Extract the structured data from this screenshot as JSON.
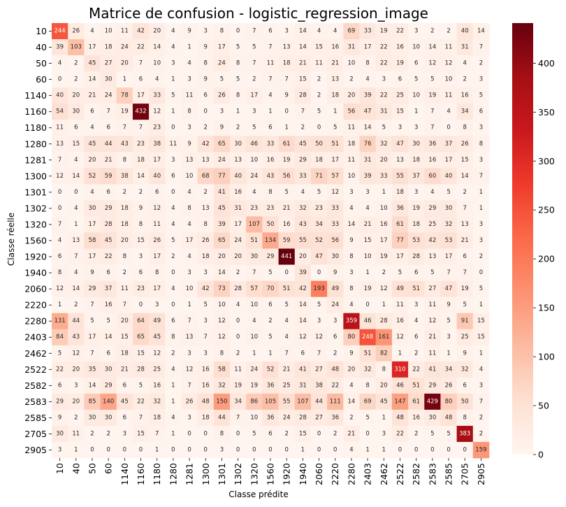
{
  "chart_data": {
    "type": "heatmap",
    "title": "Matrice de confusion - logistic_regression_image",
    "xlabel": "Classe prédite",
    "ylabel": "Classe réelle",
    "labels": [
      "10",
      "40",
      "50",
      "60",
      "1140",
      "1160",
      "1180",
      "1280",
      "1281",
      "1300",
      "1301",
      "1302",
      "1320",
      "1560",
      "1920",
      "1940",
      "2060",
      "2220",
      "2280",
      "2403",
      "2462",
      "2522",
      "2582",
      "2583",
      "2585",
      "2705",
      "2905"
    ],
    "matrix": [
      [
        244,
        26,
        4,
        10,
        11,
        42,
        20,
        4,
        9,
        3,
        8,
        0,
        7,
        6,
        3,
        14,
        4,
        4,
        69,
        33,
        19,
        22,
        3,
        2,
        2,
        40,
        14
      ],
      [
        39,
        103,
        17,
        18,
        24,
        22,
        14,
        4,
        1,
        9,
        17,
        5,
        5,
        7,
        13,
        14,
        15,
        16,
        31,
        17,
        22,
        16,
        10,
        14,
        11,
        31,
        7
      ],
      [
        4,
        2,
        45,
        27,
        20,
        7,
        10,
        3,
        4,
        8,
        24,
        8,
        7,
        11,
        18,
        21,
        11,
        21,
        10,
        8,
        22,
        19,
        6,
        12,
        12,
        4,
        2
      ],
      [
        0,
        2,
        14,
        30,
        1,
        6,
        4,
        1,
        3,
        9,
        5,
        5,
        2,
        7,
        7,
        15,
        2,
        13,
        2,
        4,
        3,
        6,
        5,
        5,
        10,
        2,
        3
      ],
      [
        40,
        20,
        21,
        24,
        78,
        17,
        33,
        5,
        11,
        6,
        26,
        8,
        17,
        4,
        9,
        28,
        2,
        18,
        20,
        39,
        22,
        25,
        10,
        19,
        11,
        16,
        5
      ],
      [
        54,
        30,
        6,
        7,
        19,
        432,
        12,
        1,
        8,
        0,
        3,
        1,
        3,
        1,
        0,
        7,
        5,
        1,
        56,
        47,
        31,
        15,
        1,
        7,
        4,
        34,
        6
      ],
      [
        11,
        6,
        4,
        6,
        7,
        7,
        23,
        0,
        3,
        2,
        9,
        2,
        5,
        6,
        1,
        2,
        0,
        5,
        11,
        14,
        5,
        3,
        3,
        7,
        0,
        8,
        3
      ],
      [
        13,
        15,
        45,
        44,
        43,
        23,
        38,
        11,
        9,
        42,
        65,
        30,
        46,
        33,
        61,
        45,
        50,
        51,
        18,
        76,
        32,
        47,
        30,
        36,
        37,
        26,
        8
      ],
      [
        7,
        4,
        20,
        21,
        8,
        18,
        17,
        3,
        13,
        13,
        24,
        13,
        10,
        16,
        19,
        29,
        18,
        17,
        11,
        31,
        20,
        13,
        18,
        16,
        17,
        15,
        3
      ],
      [
        12,
        14,
        52,
        59,
        38,
        14,
        40,
        6,
        10,
        68,
        77,
        40,
        24,
        43,
        56,
        33,
        71,
        57,
        10,
        39,
        33,
        55,
        37,
        60,
        40,
        14,
        7
      ],
      [
        0,
        0,
        4,
        6,
        2,
        2,
        6,
        0,
        4,
        2,
        41,
        16,
        4,
        8,
        5,
        4,
        5,
        12,
        3,
        3,
        1,
        18,
        3,
        4,
        5,
        2,
        1
      ],
      [
        0,
        4,
        30,
        29,
        18,
        9,
        12,
        4,
        8,
        13,
        45,
        31,
        23,
        23,
        21,
        32,
        23,
        33,
        4,
        4,
        10,
        36,
        19,
        29,
        30,
        7,
        1
      ],
      [
        7,
        1,
        17,
        28,
        18,
        8,
        11,
        4,
        4,
        8,
        39,
        17,
        107,
        50,
        16,
        43,
        34,
        33,
        14,
        21,
        16,
        61,
        18,
        25,
        32,
        13,
        3
      ],
      [
        4,
        13,
        58,
        45,
        20,
        15,
        26,
        5,
        17,
        26,
        65,
        24,
        51,
        134,
        59,
        55,
        52,
        56,
        9,
        15,
        17,
        77,
        53,
        42,
        53,
        21,
        3
      ],
      [
        6,
        7,
        17,
        22,
        8,
        3,
        17,
        2,
        4,
        18,
        20,
        20,
        30,
        29,
        441,
        20,
        47,
        30,
        8,
        10,
        19,
        17,
        28,
        13,
        17,
        6,
        2
      ],
      [
        8,
        4,
        9,
        6,
        2,
        6,
        8,
        0,
        3,
        3,
        14,
        2,
        7,
        5,
        0,
        39,
        0,
        9,
        3,
        1,
        2,
        5,
        6,
        5,
        7,
        7,
        0
      ],
      [
        12,
        14,
        29,
        37,
        11,
        23,
        17,
        4,
        10,
        42,
        73,
        28,
        57,
        70,
        51,
        42,
        193,
        49,
        8,
        19,
        12,
        49,
        51,
        27,
        47,
        19,
        5
      ],
      [
        1,
        2,
        7,
        16,
        7,
        0,
        3,
        0,
        1,
        5,
        10,
        4,
        10,
        6,
        5,
        14,
        5,
        24,
        4,
        0,
        1,
        11,
        3,
        11,
        9,
        5,
        1
      ],
      [
        131,
        44,
        5,
        5,
        20,
        64,
        49,
        6,
        7,
        3,
        12,
        0,
        4,
        2,
        4,
        14,
        3,
        3,
        359,
        46,
        28,
        16,
        4,
        12,
        5,
        91,
        15
      ],
      [
        84,
        43,
        17,
        14,
        15,
        65,
        45,
        8,
        13,
        7,
        12,
        0,
        10,
        5,
        4,
        12,
        12,
        6,
        80,
        248,
        161,
        12,
        6,
        21,
        3,
        25,
        15
      ],
      [
        5,
        12,
        7,
        6,
        18,
        15,
        12,
        2,
        3,
        3,
        8,
        2,
        1,
        1,
        7,
        6,
        7,
        2,
        9,
        51,
        82,
        1,
        2,
        11,
        1,
        9,
        1
      ],
      [
        22,
        20,
        35,
        30,
        21,
        28,
        25,
        4,
        12,
        16,
        58,
        11,
        24,
        52,
        21,
        41,
        27,
        48,
        20,
        32,
        8,
        310,
        22,
        41,
        34,
        32,
        4
      ],
      [
        6,
        3,
        14,
        29,
        6,
        5,
        16,
        1,
        7,
        16,
        32,
        19,
        19,
        36,
        25,
        31,
        38,
        22,
        4,
        8,
        20,
        46,
        51,
        29,
        26,
        6,
        3
      ],
      [
        29,
        20,
        85,
        140,
        45,
        22,
        32,
        1,
        26,
        48,
        150,
        34,
        86,
        105,
        55,
        107,
        44,
        111,
        14,
        69,
        45,
        147,
        61,
        429,
        80,
        50,
        7
      ],
      [
        9,
        2,
        30,
        30,
        6,
        7,
        18,
        4,
        3,
        18,
        44,
        7,
        10,
        36,
        24,
        28,
        27,
        36,
        2,
        5,
        1,
        48,
        16,
        30,
        48,
        8,
        2
      ],
      [
        30,
        11,
        2,
        2,
        3,
        15,
        7,
        1,
        0,
        0,
        8,
        0,
        5,
        6,
        2,
        15,
        0,
        2,
        21,
        0,
        3,
        22,
        2,
        5,
        5,
        383,
        2
      ],
      [
        3,
        1,
        0,
        0,
        0,
        0,
        1,
        0,
        0,
        0,
        3,
        0,
        0,
        0,
        0,
        1,
        0,
        0,
        4,
        1,
        1,
        0,
        0,
        0,
        0,
        0,
        159
      ]
    ],
    "vmin": 0,
    "vmax": 441,
    "colormap": "Reds",
    "colorbar_ticks": [
      0,
      50,
      100,
      150,
      200,
      250,
      300,
      350,
      400
    ]
  }
}
